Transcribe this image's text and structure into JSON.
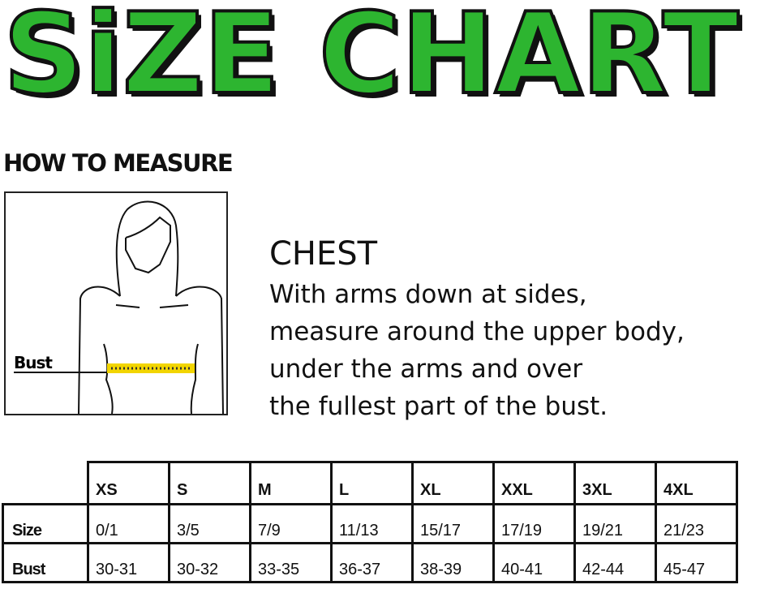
{
  "title": "SiZE CHART",
  "title_color": "#2db530",
  "how_to_measure": "HOW TO MEASURE",
  "figure": {
    "label": "Bust",
    "tape_color": "#f2d500"
  },
  "chest": {
    "title": "CHEST",
    "lines": [
      "With arms down at sides,",
      "measure around the upper body,",
      "under the arms and over",
      "the fullest part of the bust."
    ]
  },
  "table": {
    "headers": [
      "XS",
      "S",
      "M",
      "L",
      "XL",
      "XXL",
      "3XL",
      "4XL"
    ],
    "rows": [
      {
        "label": "Size",
        "values": [
          "0/1",
          "3/5",
          "7/9",
          "11/13",
          "15/17",
          "17/19",
          "19/21",
          "21/23"
        ]
      },
      {
        "label": "Bust",
        "values": [
          "30-31",
          "30-32",
          "33-35",
          "36-37",
          "38-39",
          "40-41",
          "42-44",
          "45-47"
        ]
      }
    ]
  }
}
